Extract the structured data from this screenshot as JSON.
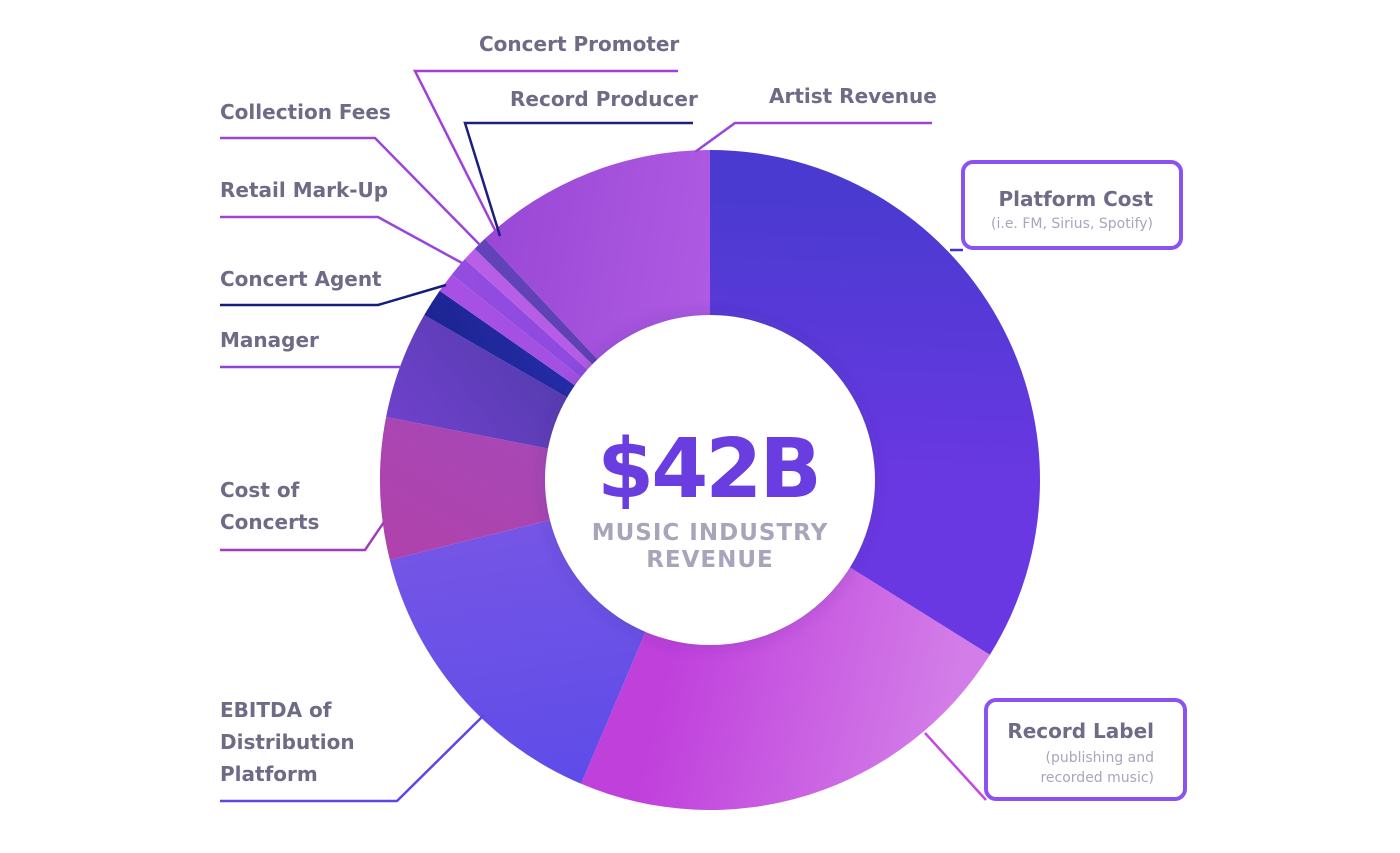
{
  "chart_data": {
    "type": "pie",
    "variant": "donut",
    "center_value": "$42B",
    "center_label_lines": [
      "MUSIC INDUSTRY",
      "REVENUE"
    ],
    "slices": [
      {
        "key": "platform",
        "label": "Platform Cost",
        "note": "(i.e. FM, Sirius, Spotify)",
        "start_deg": 0,
        "end_deg": 122,
        "colors": [
          "#4a3ad0",
          "#6a38e2"
        ]
      },
      {
        "key": "label",
        "label": "Record Label",
        "note_lines": [
          "(publishing and",
          "recorded music)"
        ],
        "start_deg": 122,
        "end_deg": 203,
        "colors": [
          "#d37ee8",
          "#c040dc"
        ]
      },
      {
        "key": "ebitda",
        "label_lines": [
          "EBITDA of",
          "Distribution",
          "Platform"
        ],
        "start_deg": 203,
        "end_deg": 256,
        "colors": [
          "#5d4be8",
          "#7656e6"
        ]
      },
      {
        "key": "concerts",
        "label_lines": [
          "Cost of",
          "Concerts"
        ],
        "start_deg": 256,
        "end_deg": 281,
        "colors": [
          "#b240a8",
          "#a649b8"
        ]
      },
      {
        "key": "manager",
        "label": "Manager",
        "start_deg": 281,
        "end_deg": 300,
        "colors": [
          "#7a44d8",
          "#4f3aa8"
        ]
      },
      {
        "key": "agent",
        "label": "Concert Agent",
        "start_deg": 300,
        "end_deg": 305,
        "colors": [
          "#141e7a",
          "#2a30b8"
        ]
      },
      {
        "key": "retail",
        "label": "Retail Mark-Up",
        "start_deg": 305,
        "end_deg": 308.5,
        "colors": [
          "#b24ee8",
          "#9a52e0"
        ]
      },
      {
        "key": "collection",
        "label": "Collection Fees",
        "start_deg": 308.5,
        "end_deg": 312,
        "colors": [
          "#9a4ee4",
          "#8a48dc"
        ]
      },
      {
        "key": "promoter",
        "label": "Concert Promoter",
        "start_deg": 312,
        "end_deg": 314.5,
        "colors": [
          "#c064e8",
          "#b058e4"
        ]
      },
      {
        "key": "producer",
        "label": "Record Producer",
        "start_deg": 314.5,
        "end_deg": 317,
        "colors": [
          "#6a48c0",
          "#5a3cb0"
        ]
      },
      {
        "key": "artist",
        "label": "Artist Revenue",
        "start_deg": 317,
        "end_deg": 360,
        "colors": [
          "#9646d4",
          "#b25ce4"
        ]
      }
    ]
  }
}
